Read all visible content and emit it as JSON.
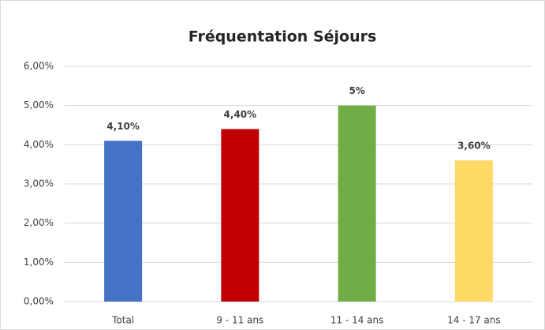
{
  "chart_data": {
    "type": "bar",
    "title": "Fréquentation Séjours",
    "categories": [
      "Total",
      "9 - 11 ans",
      "11 - 14 ans",
      "14 - 17 ans"
    ],
    "values": [
      4.1,
      4.4,
      5,
      3.6
    ],
    "value_labels": [
      "4,10%",
      "4,40%",
      "5%",
      "3,60%"
    ],
    "colors": [
      "#4472c4",
      "#c00000",
      "#70ad47",
      "#ffd966"
    ],
    "ylim": [
      0,
      6
    ],
    "yticks": [
      {
        "value": 0,
        "label": "0,00%"
      },
      {
        "value": 1,
        "label": "1,00%"
      },
      {
        "value": 2,
        "label": "2,00%"
      },
      {
        "value": 3,
        "label": "3,00%"
      },
      {
        "value": 4,
        "label": "4,00%"
      },
      {
        "value": 5,
        "label": "5,00%"
      },
      {
        "value": 6,
        "label": "6,00%"
      }
    ],
    "grid": true
  }
}
